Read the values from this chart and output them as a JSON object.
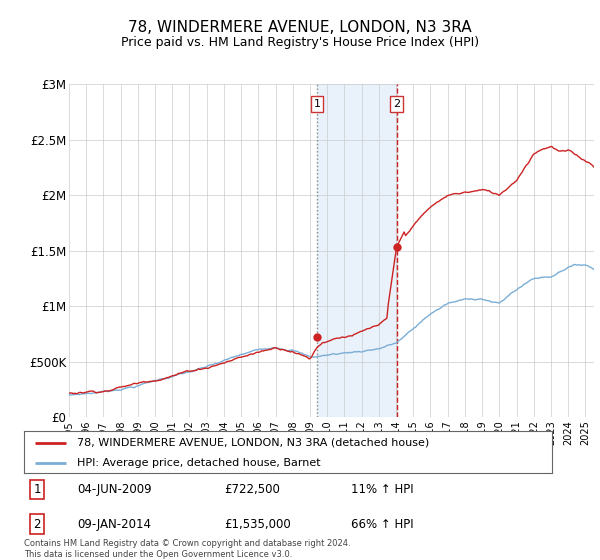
{
  "title": "78, WINDERMERE AVENUE, LONDON, N3 3RA",
  "subtitle": "Price paid vs. HM Land Registry's House Price Index (HPI)",
  "title_fontsize": 11,
  "subtitle_fontsize": 9,
  "ylabel_ticks": [
    "£0",
    "£500K",
    "£1M",
    "£1.5M",
    "£2M",
    "£2.5M",
    "£3M"
  ],
  "ytick_values": [
    0,
    500000,
    1000000,
    1500000,
    2000000,
    2500000,
    3000000
  ],
  "ylim": [
    0,
    3000000
  ],
  "xlim_start": 1995.0,
  "xlim_end": 2025.5,
  "hpi_color": "#7aaed6",
  "price_color": "#cc2222",
  "sale1_x": 2009.42,
  "sale1_y": 722500,
  "sale2_x": 2014.03,
  "sale2_y": 1535000,
  "annotation1_label": "1",
  "annotation2_label": "2",
  "legend_line1": "78, WINDERMERE AVENUE, LONDON, N3 3RA (detached house)",
  "legend_line2": "HPI: Average price, detached house, Barnet",
  "table_row1_num": "1",
  "table_row1_date": "04-JUN-2009",
  "table_row1_price": "£722,500",
  "table_row1_hpi": "11% ↑ HPI",
  "table_row2_num": "2",
  "table_row2_date": "09-JAN-2014",
  "table_row2_price": "£1,535,000",
  "table_row2_hpi": "66% ↑ HPI",
  "footer": "Contains HM Land Registry data © Crown copyright and database right 2024.\nThis data is licensed under the Open Government Licence v3.0.",
  "bg_color": "#ffffff",
  "grid_color": "#cccccc",
  "shaded_region_start": 2009.42,
  "shaded_region_end": 2014.03,
  "shaded_color": "#d0e4f5"
}
